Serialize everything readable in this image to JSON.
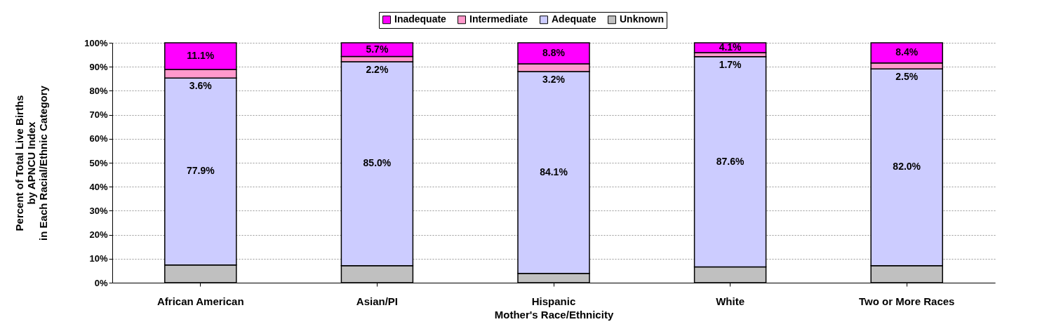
{
  "chart_data": {
    "type": "bar",
    "stacked": true,
    "categories": [
      "African American",
      "Asian/PI",
      "Hispanic",
      "White",
      "Two or More Races"
    ],
    "xlabel": "Mother's Race/Ethnicity",
    "ylabel": "Percent of Total Live Births\nby APNCU Index\nin Each Racial/Ethnic Category",
    "series": [
      {
        "name": "Unknown",
        "color": "#c0c0c0",
        "values": [
          7.4,
          7.1,
          3.9,
          6.6,
          7.1
        ],
        "value_labels": [
          null,
          null,
          null,
          null,
          null
        ]
      },
      {
        "name": "Adequate",
        "color": "#ccccff",
        "values": [
          77.9,
          85.0,
          84.1,
          87.6,
          82.0
        ],
        "value_labels": [
          "77.9%",
          "85.0%",
          "84.1%",
          "87.6%",
          "82.0%"
        ]
      },
      {
        "name": "Intermediate",
        "color": "#ff99cc",
        "values": [
          3.6,
          2.2,
          3.2,
          1.7,
          2.5
        ],
        "value_labels": [
          "3.6%",
          "2.2%",
          "3.2%",
          "1.7%",
          "2.5%"
        ]
      },
      {
        "name": "Inadequate",
        "color": "#ff00ff",
        "values": [
          11.1,
          5.7,
          8.8,
          4.1,
          8.4
        ],
        "value_labels": [
          "11.1%",
          "5.7%",
          "8.8%",
          "4.1%",
          "8.4%"
        ]
      }
    ],
    "ylim": [
      0,
      100
    ],
    "yticks": [
      {
        "value": 0,
        "label": "0%"
      },
      {
        "value": 10,
        "label": "10%"
      },
      {
        "value": 20,
        "label": "20%"
      },
      {
        "value": 30,
        "label": "30%"
      },
      {
        "value": 40,
        "label": "40%"
      },
      {
        "value": 50,
        "label": "50%"
      },
      {
        "value": 60,
        "label": "60%"
      },
      {
        "value": 70,
        "label": "70%"
      },
      {
        "value": 80,
        "label": "80%"
      },
      {
        "value": 90,
        "label": "90%"
      },
      {
        "value": 100,
        "label": "100%"
      }
    ],
    "grid": "y",
    "legend": "top"
  }
}
